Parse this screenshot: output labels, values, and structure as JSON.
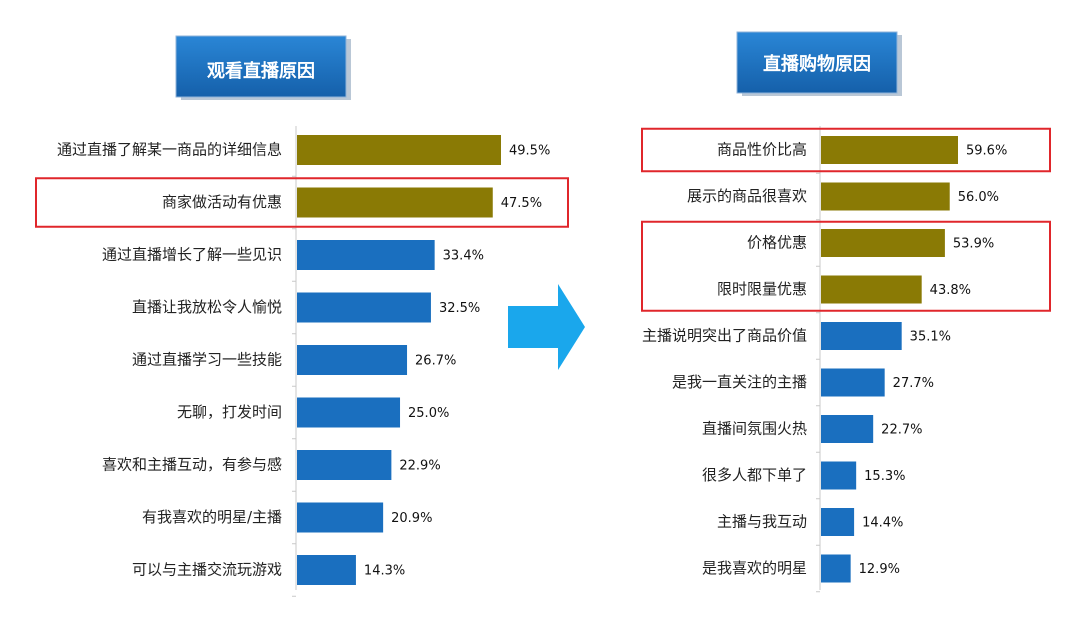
{
  "highlight_color": "#e0262b",
  "arrow_color": "#1aa7ec",
  "title_box_color": "#1a6fbf",
  "chart_data": [
    {
      "type": "bar",
      "orientation": "horizontal",
      "title": "观看直播原因",
      "categories": [
        "通过直播了解某一商品的详细信息",
        "商家做活动有优惠",
        "通过直播增长了解一些见识",
        "直播让我放松令人愉悦",
        "通过直播学习一些技能",
        "无聊，打发时间",
        "喜欢和主播互动，有参与感",
        "有我喜欢的明星/主播",
        "可以与主播交流玩游戏"
      ],
      "values": [
        49.5,
        47.5,
        33.4,
        32.5,
        26.7,
        25.0,
        22.9,
        20.9,
        14.3
      ],
      "value_labels": [
        "49.5%",
        "47.5%",
        "33.4%",
        "32.5%",
        "26.7%",
        "25.0%",
        "22.9%",
        "20.9%",
        "14.3%"
      ],
      "colors": [
        "#8a7a05",
        "#8a7a05",
        "#1a6fbf",
        "#1a6fbf",
        "#1a6fbf",
        "#1a6fbf",
        "#1a6fbf",
        "#1a6fbf",
        "#1a6fbf"
      ],
      "xlim": [
        0,
        60
      ],
      "highlighted_groups": [
        [
          1
        ]
      ]
    },
    {
      "type": "bar",
      "orientation": "horizontal",
      "title": "直播购物原因",
      "categories": [
        "商品性价比高",
        "展示的商品很喜欢",
        "价格优惠",
        "限时限量优惠",
        "主播说明突出了商品价值",
        "是我一直关注的主播",
        "直播间氛围火热",
        "很多人都下单了",
        "主播与我互动",
        "是我喜欢的明星"
      ],
      "values": [
        59.6,
        56.0,
        53.9,
        43.8,
        35.1,
        27.7,
        22.7,
        15.3,
        14.4,
        12.9
      ],
      "value_labels": [
        "59.6%",
        "56.0%",
        "53.9%",
        "43.8%",
        "35.1%",
        "27.7%",
        "22.7%",
        "15.3%",
        "14.4%",
        "12.9%"
      ],
      "colors": [
        "#8a7a05",
        "#8a7a05",
        "#8a7a05",
        "#8a7a05",
        "#1a6fbf",
        "#1a6fbf",
        "#1a6fbf",
        "#1a6fbf",
        "#1a6fbf",
        "#1a6fbf"
      ],
      "xlim": [
        0,
        60
      ],
      "highlighted_groups": [
        [
          0
        ],
        [
          2,
          3
        ]
      ]
    }
  ]
}
